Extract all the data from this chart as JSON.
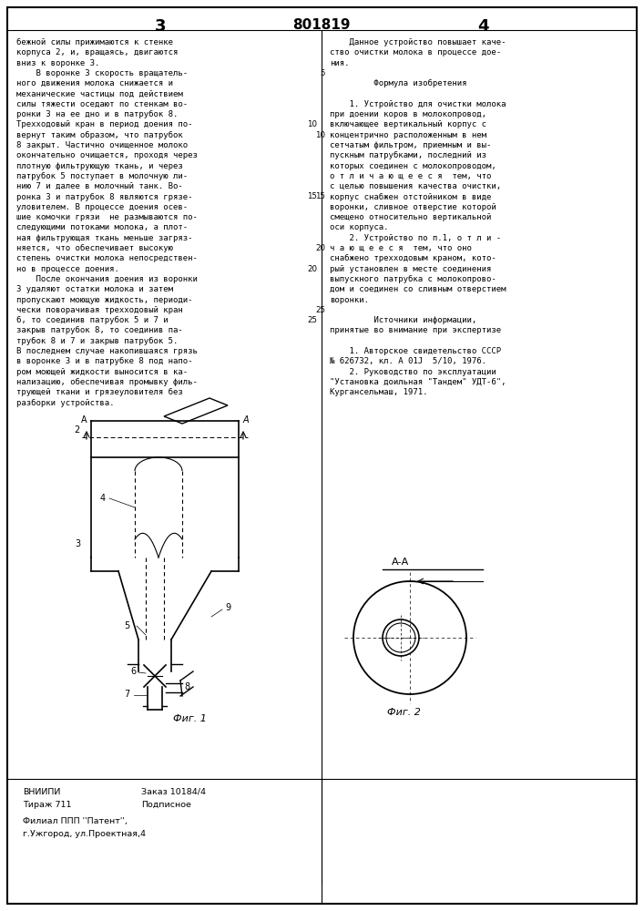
{
  "background_color": "#ffffff",
  "page_number_left": "3",
  "patent_number": "801819",
  "page_number_right": "4",
  "left_column_text": [
    "бежной силы прижимаются к стенке",
    "корпуса 2, и, вращаясь, двигаются",
    "вниз к воронке 3.",
    "    В воронке 3 скорость вращатель-",
    "ного движения молока снижается и",
    "механические частицы под действием",
    "силы тяжести оседают по стенкам во-",
    "ронки 3 на ее дно и в патрубок 8.",
    "Трехходовый кран в период доения по-",
    "вернут таким образом, что патрубок",
    "8 закрыт. Частично очищенное молоко",
    "окончательно очищается, проходя через",
    "плотную фильтрующую ткань, и через",
    "патрубок 5 поступает в молочную ли-",
    "нию 7 и далее в молочный танк. Во-",
    "ронка 3 и патрубок 8 являются грязе-",
    "уловителем. В процессе доения осев-",
    "шие комочки грязи  не размываются по-",
    "следующими потоками молока, а плот-",
    "ная фильтрующая ткань меньше загряз-",
    "няется, что обеспечивает высокую",
    "степень очистки молока непосредствен-",
    "но в процессе доения.",
    "    После окончания доения из воронки",
    "3 удаляют остатки молока и затем",
    "пропускают моющую жидкость, периоди-",
    "чески поворачивая трехходовый кран",
    "6, то соединив патрубок 5 и 7 и",
    "закрыв патрубок 8, то соединив па-",
    "трубок 8 и 7 и закрыв патрубок 5.",
    "В последнем случае накопившаяся грязь",
    "в воронке 3 и в патрубке 8 под напо-",
    "ром моющей жидкости выносится в ка-",
    "нализацию, обеспечивая промывку филь-",
    "трующей ткани и грязеуловителя без",
    "разборки устройства."
  ],
  "right_column_text": [
    "    Данное устройство повышает каче-",
    "ство очистки молока в процессе дое-",
    "ния.",
    "",
    "         Формула изобретения",
    "",
    "    1. Устройство для очистки молока",
    "при доении коров в молокопровод,",
    "включающее вертикальный корпус с",
    "концентрично расположенным в нем",
    "сетчатым фильтром, приемным и вы-",
    "пускным патрубками, последний из",
    "которых соединен с молокопроводом,",
    "о т л и ч а ю щ е е с я  тем, что",
    "с целью повышения качества очистки,",
    "корпус снабжен отстойником в виде",
    "воронки, сливное отверстие которой",
    "смещено относительно вертикальной",
    "оси корпуса.",
    "    2. Устройство по п.1, о т л и -",
    "ч а ю щ е е с я  тем, что оно",
    "снабжено трехходовым краном, кото-",
    "рый установлен в месте соединения",
    "выпускного патрубка с молокопрово-",
    "дом и соединен со сливным отверстием",
    "воронки.",
    "",
    "         Источники информации,",
    "принятые во внимание при экспертизе",
    "",
    "    1. Авторское свидетельство СССР",
    "№ 626732, кл. А 01J  5/10, 1976.",
    "    2. Руководство по эксплуатации",
    "\"Установка доильная \"Тандем\" УДТ-6\",",
    "Кургансельмаш, 1971."
  ],
  "fig1_label": "Фиг. 1",
  "fig2_label": "Фиг. 2",
  "aa_label": "А-А"
}
